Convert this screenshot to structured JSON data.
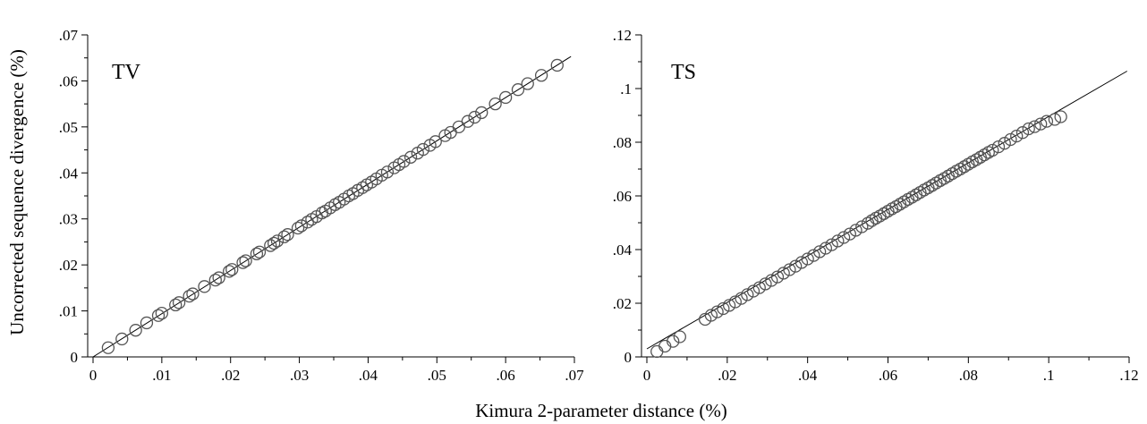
{
  "figure": {
    "xlabel": "Kimura 2-parameter distance (%)",
    "ylabel": "Uncorrected sequence  divergence (%)"
  },
  "chart_data": [
    {
      "type": "scatter",
      "panel_label": "TV",
      "xlim": [
        0,
        0.07
      ],
      "ylim": [
        0,
        0.07
      ],
      "x_ticks": [
        "0",
        ".01",
        ".02",
        ".03",
        ".04",
        ".05",
        ".06",
        ".07"
      ],
      "y_ticks": [
        "0",
        ".01",
        ".02",
        ".03",
        ".04",
        ".05",
        ".06",
        ".07"
      ],
      "x_tick_values": [
        0,
        0.01,
        0.02,
        0.03,
        0.04,
        0.05,
        0.06,
        0.07
      ],
      "y_tick_values": [
        0,
        0.01,
        0.02,
        0.03,
        0.04,
        0.05,
        0.06,
        0.07
      ],
      "marker": "open-circle",
      "color": "#555555",
      "fit_line": {
        "x": [
          0,
          0.0695
        ],
        "y": [
          0,
          0.0653
        ]
      },
      "points": [
        [
          0.0022,
          0.002
        ],
        [
          0.0042,
          0.0039
        ],
        [
          0.0062,
          0.0058
        ],
        [
          0.0078,
          0.0074
        ],
        [
          0.0095,
          0.009
        ],
        [
          0.01,
          0.0095
        ],
        [
          0.012,
          0.0113
        ],
        [
          0.0125,
          0.0118
        ],
        [
          0.014,
          0.0132
        ],
        [
          0.0145,
          0.0137
        ],
        [
          0.0162,
          0.0153
        ],
        [
          0.0178,
          0.0167
        ],
        [
          0.0183,
          0.0172
        ],
        [
          0.0198,
          0.0186
        ],
        [
          0.0202,
          0.019
        ],
        [
          0.0218,
          0.0205
        ],
        [
          0.0222,
          0.0209
        ],
        [
          0.0238,
          0.0224
        ],
        [
          0.0242,
          0.0228
        ],
        [
          0.0258,
          0.0242
        ],
        [
          0.0263,
          0.0247
        ],
        [
          0.0268,
          0.0252
        ],
        [
          0.0278,
          0.0261
        ],
        [
          0.0283,
          0.0266
        ],
        [
          0.0298,
          0.028
        ],
        [
          0.0303,
          0.0285
        ],
        [
          0.0312,
          0.0293
        ],
        [
          0.0318,
          0.0299
        ],
        [
          0.0325,
          0.0305
        ],
        [
          0.0333,
          0.0313
        ],
        [
          0.0338,
          0.0317
        ],
        [
          0.0345,
          0.0324
        ],
        [
          0.0352,
          0.0331
        ],
        [
          0.0358,
          0.0336
        ],
        [
          0.0365,
          0.0343
        ],
        [
          0.0372,
          0.035
        ],
        [
          0.0378,
          0.0355
        ],
        [
          0.0385,
          0.0362
        ],
        [
          0.0392,
          0.0368
        ],
        [
          0.0398,
          0.0374
        ],
        [
          0.0405,
          0.038
        ],
        [
          0.0412,
          0.0387
        ],
        [
          0.042,
          0.0395
        ],
        [
          0.0428,
          0.0402
        ],
        [
          0.0438,
          0.0411
        ],
        [
          0.0445,
          0.0418
        ],
        [
          0.0452,
          0.0425
        ],
        [
          0.0462,
          0.0434
        ],
        [
          0.0472,
          0.0443
        ],
        [
          0.048,
          0.0451
        ],
        [
          0.049,
          0.046
        ],
        [
          0.0498,
          0.0468
        ],
        [
          0.0512,
          0.0481
        ],
        [
          0.052,
          0.0488
        ],
        [
          0.0532,
          0.05
        ],
        [
          0.0545,
          0.0512
        ],
        [
          0.0555,
          0.0521
        ],
        [
          0.0565,
          0.0531
        ],
        [
          0.0585,
          0.055
        ],
        [
          0.06,
          0.0564
        ],
        [
          0.0618,
          0.0581
        ],
        [
          0.0632,
          0.0594
        ],
        [
          0.0652,
          0.0612
        ],
        [
          0.0675,
          0.0634
        ]
      ]
    },
    {
      "type": "scatter",
      "panel_label": "TS",
      "xlim": [
        0,
        0.12
      ],
      "ylim": [
        0,
        0.12
      ],
      "x_ticks": [
        "0",
        ".02",
        ".04",
        ".06",
        ".08",
        ".1",
        ".12"
      ],
      "y_ticks": [
        "0",
        ".02",
        ".04",
        ".06",
        ".08",
        ".1",
        ".12"
      ],
      "x_tick_values": [
        0,
        0.02,
        0.04,
        0.06,
        0.08,
        0.1,
        0.12
      ],
      "y_tick_values": [
        0,
        0.02,
        0.04,
        0.06,
        0.08,
        0.1,
        0.12
      ],
      "marker": "open-circle",
      "color": "#555555",
      "fit_line": {
        "x": [
          0,
          0.1195
        ],
        "y": [
          0.003,
          0.1065
        ]
      },
      "points": [
        [
          0.0025,
          0.002
        ],
        [
          0.0045,
          0.004
        ],
        [
          0.0065,
          0.0058
        ],
        [
          0.0082,
          0.0075
        ],
        [
          0.0145,
          0.014
        ],
        [
          0.016,
          0.0155
        ],
        [
          0.0175,
          0.0168
        ],
        [
          0.019,
          0.018
        ],
        [
          0.0205,
          0.0192
        ],
        [
          0.022,
          0.0205
        ],
        [
          0.0235,
          0.0218
        ],
        [
          0.025,
          0.0232
        ],
        [
          0.0265,
          0.0245
        ],
        [
          0.028,
          0.0258
        ],
        [
          0.0295,
          0.0272
        ],
        [
          0.031,
          0.0285
        ],
        [
          0.0325,
          0.0298
        ],
        [
          0.034,
          0.0312
        ],
        [
          0.0355,
          0.0325
        ],
        [
          0.037,
          0.0338
        ],
        [
          0.0385,
          0.0352
        ],
        [
          0.04,
          0.0365
        ],
        [
          0.0415,
          0.0378
        ],
        [
          0.043,
          0.0392
        ],
        [
          0.0445,
          0.0405
        ],
        [
          0.046,
          0.0418
        ],
        [
          0.0475,
          0.0432
        ],
        [
          0.049,
          0.0445
        ],
        [
          0.0505,
          0.0458
        ],
        [
          0.052,
          0.0472
        ],
        [
          0.0535,
          0.0485
        ],
        [
          0.055,
          0.0498
        ],
        [
          0.056,
          0.0508
        ],
        [
          0.057,
          0.0517
        ],
        [
          0.058,
          0.0525
        ],
        [
          0.059,
          0.0534
        ],
        [
          0.06,
          0.0543
        ],
        [
          0.061,
          0.0552
        ],
        [
          0.062,
          0.056
        ],
        [
          0.063,
          0.0569
        ],
        [
          0.064,
          0.0578
        ],
        [
          0.065,
          0.0587
        ],
        [
          0.066,
          0.0595
        ],
        [
          0.067,
          0.0604
        ],
        [
          0.068,
          0.0613
        ],
        [
          0.069,
          0.0622
        ],
        [
          0.07,
          0.063
        ],
        [
          0.071,
          0.0639
        ],
        [
          0.072,
          0.0648
        ],
        [
          0.073,
          0.0657
        ],
        [
          0.074,
          0.0665
        ],
        [
          0.075,
          0.0674
        ],
        [
          0.076,
          0.0683
        ],
        [
          0.077,
          0.0692
        ],
        [
          0.078,
          0.07
        ],
        [
          0.079,
          0.0709
        ],
        [
          0.08,
          0.0718
        ],
        [
          0.081,
          0.0727
        ],
        [
          0.082,
          0.0735
        ],
        [
          0.083,
          0.0744
        ],
        [
          0.084,
          0.0753
        ],
        [
          0.085,
          0.0762
        ],
        [
          0.086,
          0.077
        ],
        [
          0.0875,
          0.0783
        ],
        [
          0.089,
          0.0796
        ],
        [
          0.0905,
          0.081
        ],
        [
          0.092,
          0.0823
        ],
        [
          0.0935,
          0.0836
        ],
        [
          0.095,
          0.085
        ],
        [
          0.0965,
          0.0858
        ],
        [
          0.098,
          0.0868
        ],
        [
          0.0995,
          0.0878
        ],
        [
          0.1015,
          0.0885
        ],
        [
          0.103,
          0.0895
        ]
      ]
    }
  ]
}
